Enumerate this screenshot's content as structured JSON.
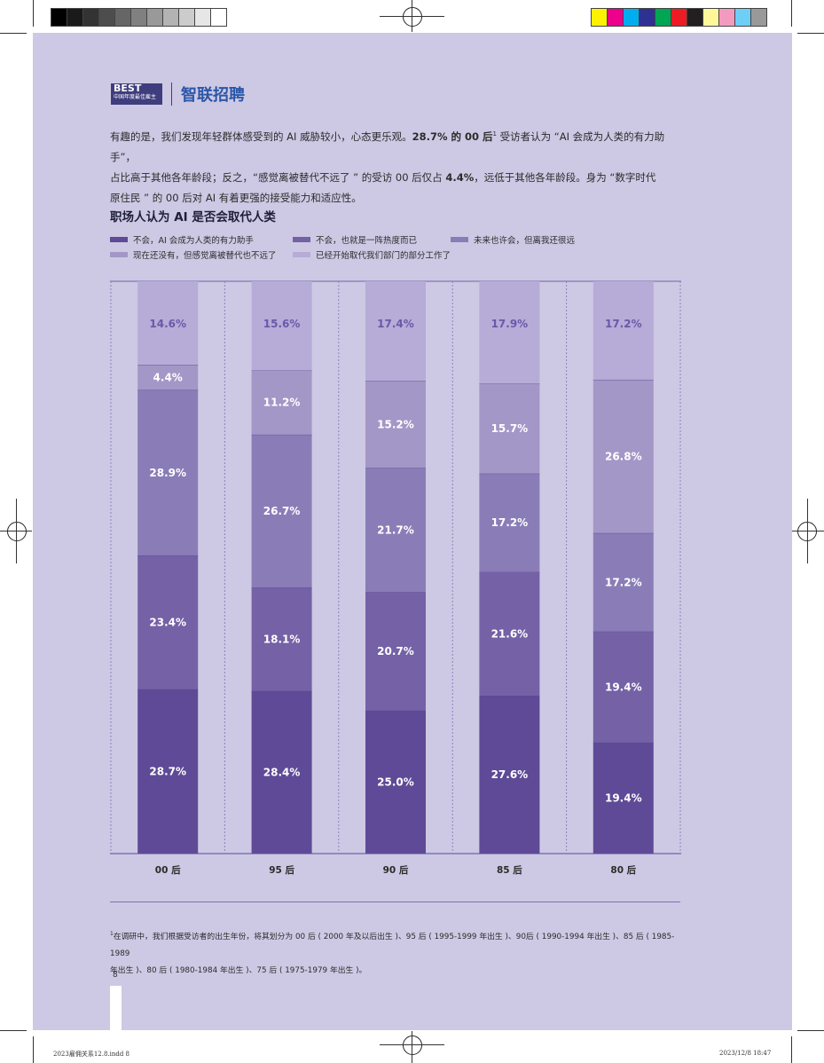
{
  "logo": {
    "best_text": "BEST",
    "best_sub": "中国年度最佳雇主",
    "brand": "智联招聘"
  },
  "intro": {
    "line1_a": "有趣的是，我们发现年轻群体感受到的 AI 威胁较小，心态更乐观。",
    "line1_b": "28.7%",
    "line1_c": " 的 00 后",
    "line1_sup": "1",
    "line1_d": " 受访者认为 “AI 会成为人类的有力助手”，",
    "line2": "占比高于其他各年龄段；反之，“感觉离被替代不远了 ” 的受访 00 后仅占 ",
    "line2_b": "4.4%",
    "line2_c": "，远低于其他各年龄段。身为 “数字时代",
    "line3": "原住民 ” 的 00 后对 AI 有着更强的接受能力和适应性。"
  },
  "chart_data": {
    "type": "bar",
    "stacked": true,
    "title": "职场人认为 AI 是否会取代人类",
    "categories": [
      "00后",
      "95后",
      "90后",
      "85后",
      "80后"
    ],
    "ylim": [
      0,
      100
    ],
    "legend_position": "top",
    "series": [
      {
        "name": "不会，AI 会成为人类的有力助手",
        "color": "#5e4a96",
        "values": [
          28.7,
          28.4,
          25.0,
          27.6,
          19.4
        ]
      },
      {
        "name": "不会，也就是一阵热度而已",
        "color": "#7461a6",
        "values": [
          23.4,
          18.1,
          20.7,
          21.6,
          19.4
        ]
      },
      {
        "name": "未来也许会，但离我还很远",
        "color": "#8a7db7",
        "values": [
          28.9,
          26.7,
          21.7,
          17.2,
          17.2
        ]
      },
      {
        "name": "现在还没有，但感觉离被替代也不远了",
        "color": "#a397c7",
        "values": [
          4.4,
          11.2,
          15.2,
          15.7,
          26.8
        ]
      },
      {
        "name": "已经开始取代我们部门的部分工作了",
        "color": "#b6acd7",
        "values": [
          14.6,
          15.6,
          17.4,
          17.9,
          17.2
        ]
      }
    ],
    "data_labels": [
      [
        "28.7%",
        "23.4%",
        "28.9%",
        "4.4%",
        "14.6%"
      ],
      [
        "28.4%",
        "18.1%",
        "26.7%",
        "11.2%",
        "15.6%"
      ],
      [
        "25.0%",
        "20.7%",
        "21.7%",
        "15.2%",
        "17.4%"
      ],
      [
        "27.6%",
        "21.6%",
        "17.2%",
        "15.7%",
        "17.9%"
      ],
      [
        "19.4%",
        "19.4%",
        "17.2%",
        "26.8%",
        "17.2%"
      ]
    ],
    "top_label_color": "#6a58a8",
    "label_color": "#ffffff"
  },
  "categories_display": [
    "00 后",
    "95 后",
    "90 后",
    "85 后",
    "80 后"
  ],
  "footnote": {
    "sup": "1",
    "line1": "在调研中，我们根据受访者的出生年份，将其划分为 00 后 ( 2000 年及以后出生 )、95 后 ( 1995-1999 年出生 )、90后 ( 1990-1994 年出生 )、85 后 ( 1985-1989",
    "line2": "年出生 )、80 后 ( 1980-1984 年出生 )、75 后 ( 1975-1979 年出生 )。"
  },
  "page_number": "8",
  "slug": {
    "left": "2023雇佣关系12.8.indd   8",
    "right": "2023/12/8   18:47"
  },
  "print_marks": {
    "grays": [
      "#000000",
      "#1a1a1a",
      "#333333",
      "#4d4d4d",
      "#666666",
      "#808080",
      "#999999",
      "#b3b3b3",
      "#cccccc",
      "#e6e6e6",
      "#ffffff"
    ],
    "colors": [
      "#fff200",
      "#ec008c",
      "#00aeef",
      "#2e3192",
      "#00a651",
      "#ed1c24",
      "#231f20",
      "#fff799",
      "#f49ac1",
      "#6dcff6",
      "#999999"
    ]
  }
}
